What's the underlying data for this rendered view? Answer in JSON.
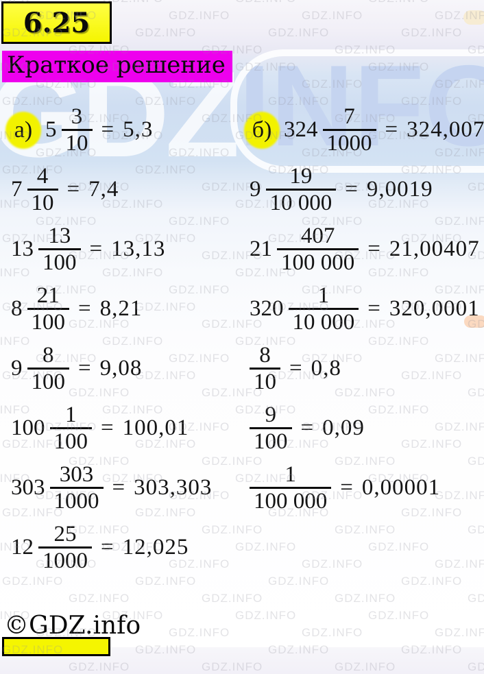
{
  "page": {
    "problem_number": "6.25",
    "title": "Краткое решение",
    "footer_copyright": "©GDZ.info"
  },
  "watermark": {
    "text": "GDZ.INFO",
    "logo_left": "GDZ",
    "logo_right": "INFO"
  },
  "symbols": {
    "equals": "="
  },
  "columns": [
    {
      "label": "а)",
      "rows": [
        {
          "whole": "5",
          "num": "3",
          "den": "10",
          "result": "5,3"
        },
        {
          "whole": "7",
          "num": "4",
          "den": "10",
          "result": "7,4"
        },
        {
          "whole": "13",
          "num": "13",
          "den": "100",
          "result": "13,13"
        },
        {
          "whole": "8",
          "num": "21",
          "den": "100",
          "result": "8,21"
        },
        {
          "whole": "9",
          "num": "8",
          "den": "100",
          "result": "9,08"
        },
        {
          "whole": "100",
          "num": "1",
          "den": "100",
          "result": "100,01"
        },
        {
          "whole": "303",
          "num": "303",
          "den": "1000",
          "result": "303,303"
        },
        {
          "whole": "12",
          "num": "25",
          "den": "1000",
          "result": "12,025"
        }
      ]
    },
    {
      "label": "б)",
      "rows": [
        {
          "whole": "324",
          "num": "7",
          "den": "1000",
          "result": "324,007"
        },
        {
          "whole": "9",
          "num": "19",
          "den": "10 000",
          "result": "9,0019"
        },
        {
          "whole": "21",
          "num": "407",
          "den": "100 000",
          "result": "21,00407"
        },
        {
          "whole": "320",
          "num": "1",
          "den": "10 000",
          "result": "320,0001"
        },
        {
          "whole": "",
          "num": "8",
          "den": "10",
          "result": "0,8"
        },
        {
          "whole": "",
          "num": "9",
          "den": "100",
          "result": "0,09"
        },
        {
          "whole": "",
          "num": "1",
          "den": "100 000",
          "result": "0,00001"
        }
      ]
    }
  ],
  "colors": {
    "badge-yellow": "#f5f500",
    "title-magenta": "#ee00ee",
    "circle-yellow": "#f2f200",
    "logo-blue": "#c5d4f0",
    "ink": "#141414"
  }
}
